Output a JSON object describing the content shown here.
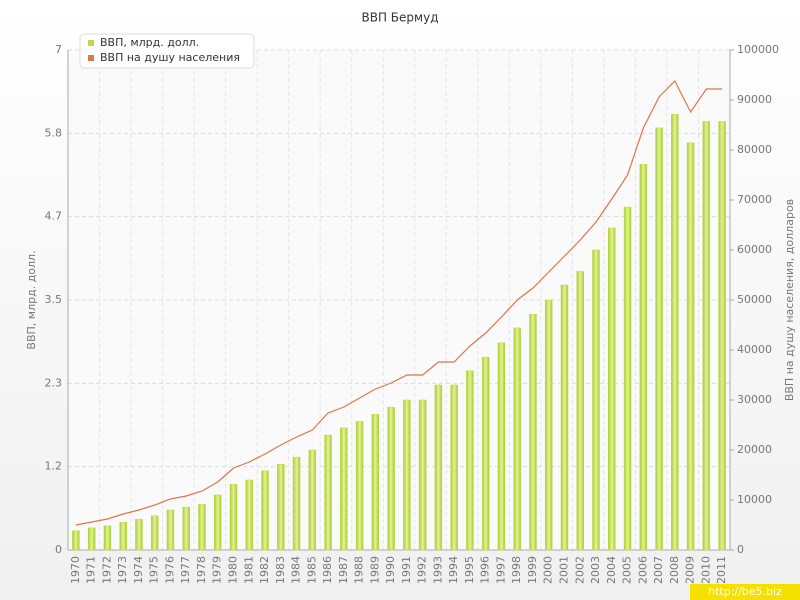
{
  "chart_data": {
    "type": "bar-line",
    "title": "ВВП Бермуд",
    "y_label": "ВВП, млрд. долл.",
    "y2_label": "ВВП на душу населения, долларов",
    "watermark": "http://be5.biz",
    "categories": [
      "1970",
      "1971",
      "1972",
      "1973",
      "1974",
      "1975",
      "1976",
      "1977",
      "1978",
      "1979",
      "1980",
      "1981",
      "1982",
      "1983",
      "1984",
      "1985",
      "1986",
      "1987",
      "1988",
      "1989",
      "1990",
      "1991",
      "1992",
      "1993",
      "1994",
      "1995",
      "1996",
      "1997",
      "1998",
      "1999",
      "2000",
      "2001",
      "2002",
      "2003",
      "2004",
      "2005",
      "2006",
      "2007",
      "2008",
      "2009",
      "2010",
      "2011"
    ],
    "series": [
      {
        "name": "ВВП, млрд. долл.",
        "type": "bar",
        "color": "#bcdc45",
        "values": [
          0.27,
          0.31,
          0.34,
          0.39,
          0.43,
          0.48,
          0.56,
          0.6,
          0.64,
          0.77,
          0.92,
          0.98,
          1.11,
          1.2,
          1.3,
          1.4,
          1.61,
          1.71,
          1.8,
          1.9,
          2.0,
          2.1,
          2.1,
          2.31,
          2.31,
          2.51,
          2.7,
          2.9,
          3.11,
          3.3,
          3.5,
          3.71,
          3.9,
          4.2,
          4.51,
          4.8,
          5.4,
          5.91,
          6.1,
          5.7,
          6.0,
          6.0
        ]
      },
      {
        "name": "ВВП на душу населения",
        "type": "line",
        "axis": "y2",
        "color": "#e0744a",
        "values": [
          5000,
          5600,
          6200,
          7200,
          8000,
          9000,
          10200,
          10800,
          11800,
          13600,
          16400,
          17600,
          19200,
          21000,
          22600,
          24000,
          27400,
          28600,
          30400,
          32200,
          33400,
          35000,
          35000,
          37600,
          37600,
          40800,
          43400,
          46600,
          50000,
          52400,
          55600,
          58800,
          62000,
          65600,
          70200,
          75000,
          84400,
          90600,
          93800,
          87600,
          92200,
          92200
        ]
      }
    ],
    "ylim": [
      0,
      7
    ],
    "yticks": [
      0,
      {
        "value": 1.1667,
        "label": "1.2"
      },
      {
        "value": 2.3333,
        "label": "2.3"
      },
      3.5,
      {
        "value": 4.6667,
        "label": "4.7"
      },
      {
        "value": 5.8333,
        "label": "5.8"
      },
      7
    ],
    "y2lim": [
      0,
      100000
    ],
    "y2ticks": [
      0,
      10000,
      20000,
      30000,
      40000,
      50000,
      60000,
      70000,
      80000,
      90000,
      100000
    ],
    "grid": true,
    "legend": "top-left"
  }
}
